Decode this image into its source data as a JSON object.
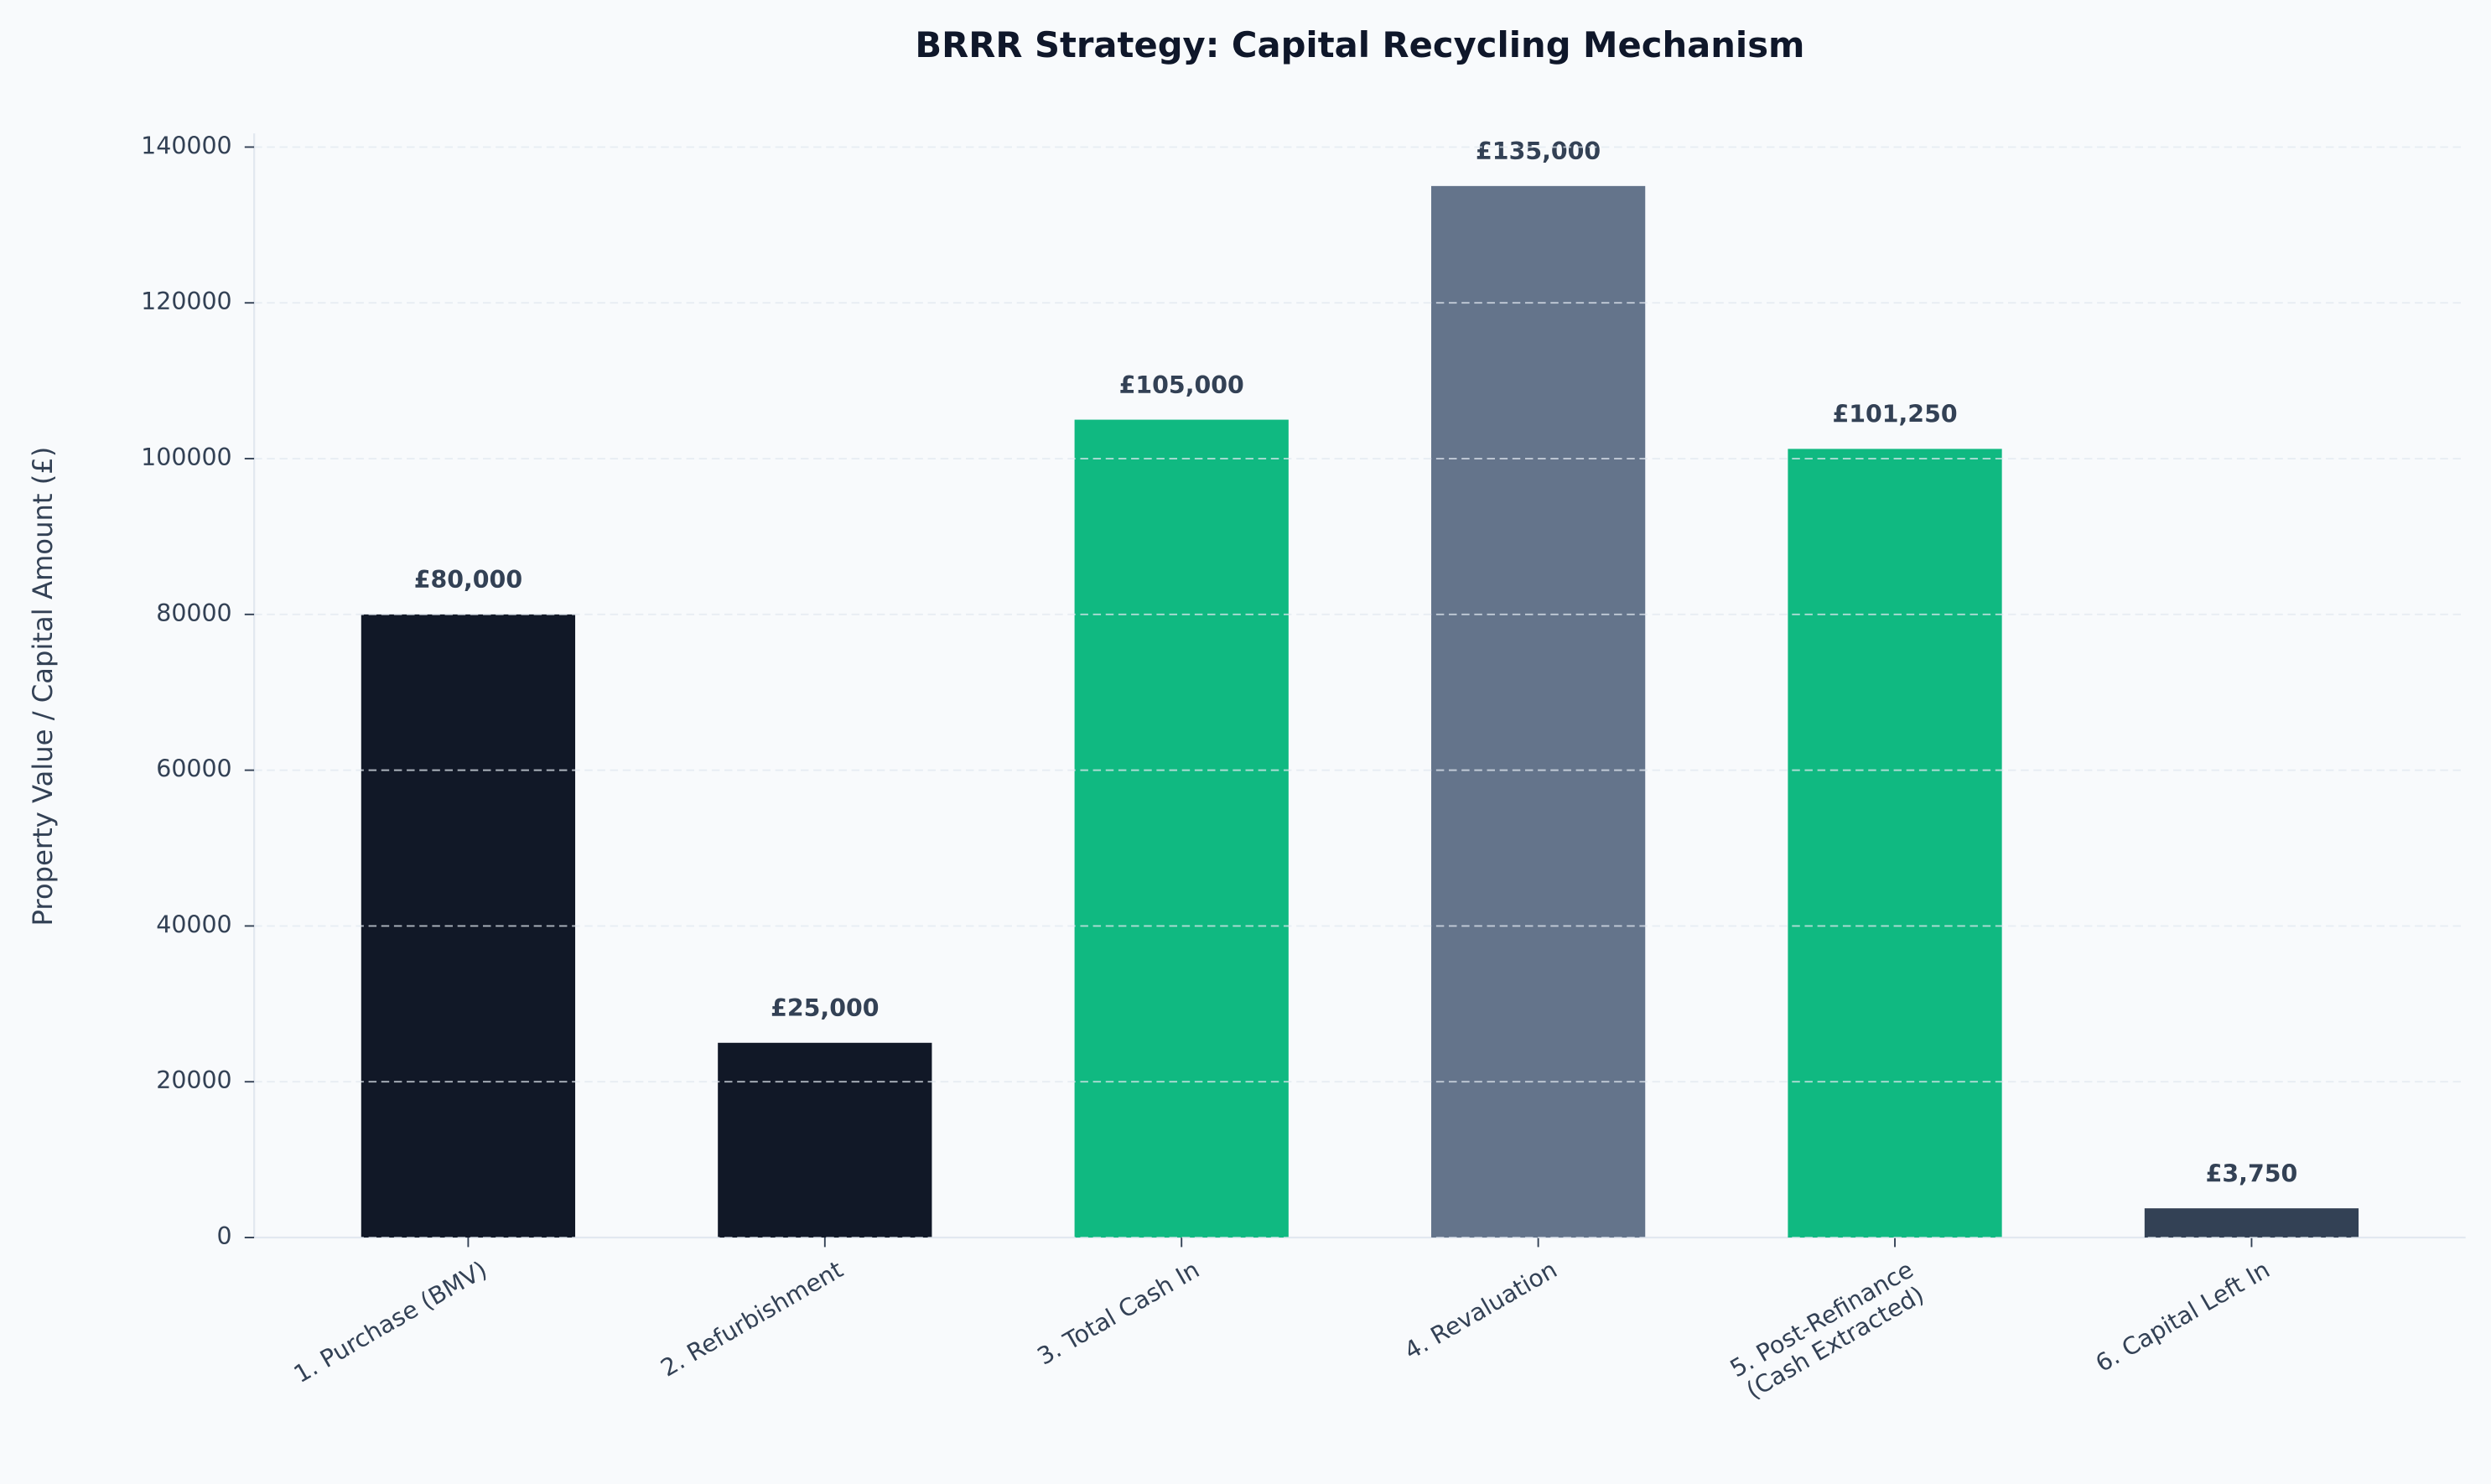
{
  "chart_data": {
    "type": "bar",
    "title": "BRRR Strategy: Capital Recycling Mechanism",
    "y_label": "Property Value / Capital Amount (£)",
    "categories": [
      "1. Purchase (BMV)",
      "2. Refurbishment",
      "3. Total Cash In",
      "4. Revaluation",
      "5. Post-Refinance\n(Cash Extracted)",
      "6. Capital Left In"
    ],
    "values": [
      80000,
      25000,
      105000,
      135000,
      101250,
      3750
    ],
    "value_labels": [
      "£80,000",
      "£25,000",
      "£105,000",
      "£135,000",
      "£101,250",
      "£3,750"
    ],
    "colors": [
      "#111827",
      "#111827",
      "#10b981",
      "#64748b",
      "#10b981",
      "#334155"
    ],
    "ylim": [
      0,
      141750
    ],
    "yticks": [
      0,
      20000,
      40000,
      60000,
      80000,
      100000,
      120000,
      140000
    ],
    "grid": true
  }
}
